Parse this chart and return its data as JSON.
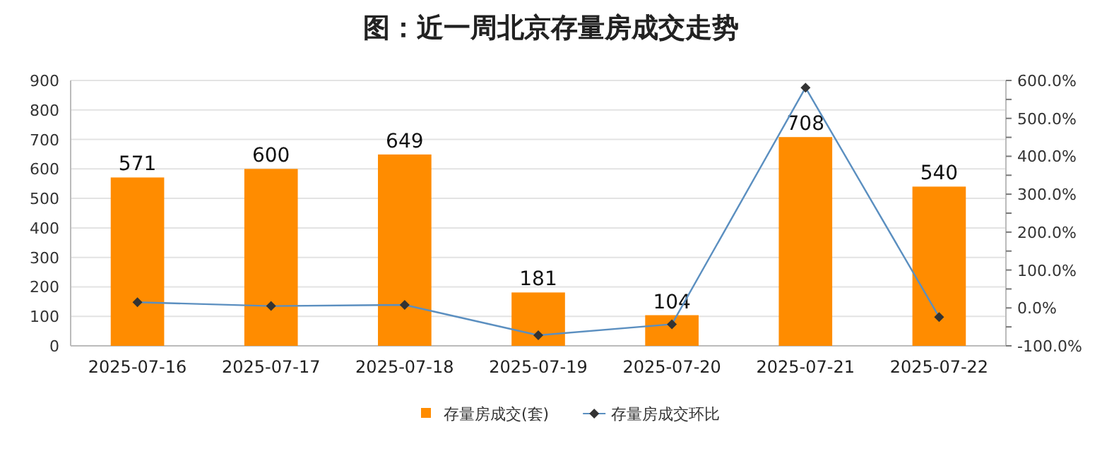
{
  "chart_data": {
    "type": "bar",
    "title": "图：近一周北京存量房成交走势",
    "categories": [
      "2025-07-16",
      "2025-07-17",
      "2025-07-18",
      "2025-07-19",
      "2025-07-20",
      "2025-07-21",
      "2025-07-22"
    ],
    "series": [
      {
        "name": "存量房成交(套)",
        "color": "#ff8c00",
        "values": [
          571,
          600,
          649,
          181,
          104,
          708,
          540
        ],
        "value_labels": [
          "571",
          "600",
          "649",
          "181",
          "104",
          "708",
          "540"
        ]
      },
      {
        "name": "存量房成交环比",
        "type": "line",
        "axis": "y2",
        "color": "#5b8fc0",
        "marker": "diamond",
        "values": [
          15,
          5,
          8,
          -72,
          -43,
          581,
          -24
        ]
      }
    ],
    "ylim": [
      0,
      900
    ],
    "yticks": [
      0,
      100,
      200,
      300,
      400,
      500,
      600,
      700,
      800,
      900
    ],
    "y2lim": [
      -100,
      600
    ],
    "y2ticks": [
      {
        "value": -100,
        "label": "-100.0%"
      },
      {
        "value": -50,
        "label": null
      },
      {
        "value": 0,
        "label": "0.0%"
      },
      {
        "value": 50,
        "label": null
      },
      {
        "value": 100,
        "label": "100.0%"
      },
      {
        "value": 150,
        "label": null
      },
      {
        "value": 200,
        "label": "200.0%"
      },
      {
        "value": 250,
        "label": null
      },
      {
        "value": 300,
        "label": "300.0%"
      },
      {
        "value": 350,
        "label": null
      },
      {
        "value": 400,
        "label": "400.0%"
      },
      {
        "value": 450,
        "label": null
      },
      {
        "value": 500,
        "label": "500.0%"
      },
      {
        "value": 550,
        "label": null
      },
      {
        "value": 600,
        "label": "600.0%"
      }
    ],
    "grid": "y",
    "legend": "bottom"
  }
}
